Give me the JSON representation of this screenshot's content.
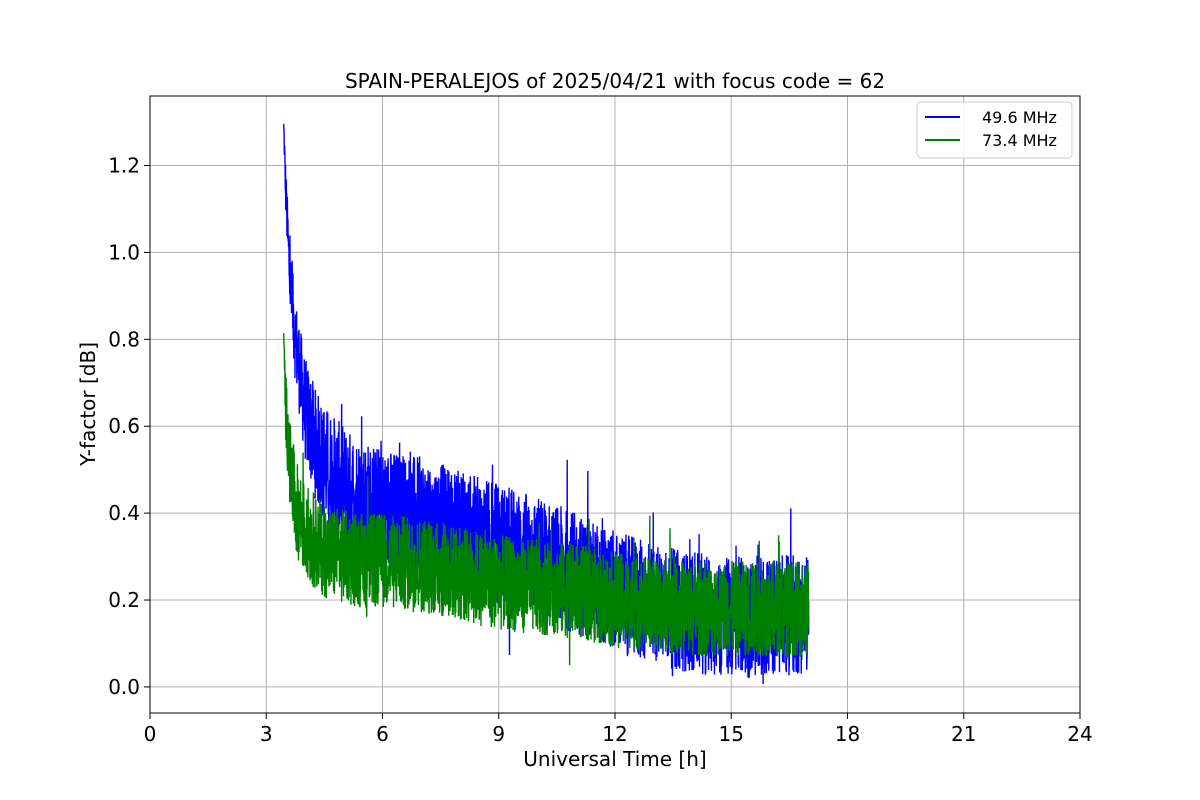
{
  "chart_data": {
    "type": "line",
    "title": "SPAIN-PERALEJOS of 2025/04/21 with focus code = 62",
    "xlabel": "Universal Time [h]",
    "ylabel": "Y-factor [dB]",
    "xlim": [
      0,
      24
    ],
    "ylim": [
      -0.06,
      1.36
    ],
    "xticks": [
      0,
      3,
      6,
      9,
      12,
      15,
      18,
      21,
      24
    ],
    "yticks": [
      0.0,
      0.2,
      0.4,
      0.6,
      0.8,
      1.0,
      1.2
    ],
    "xtick_labels": [
      "0",
      "3",
      "6",
      "9",
      "12",
      "15",
      "18",
      "21",
      "24"
    ],
    "ytick_labels": [
      "0.0",
      "0.2",
      "0.4",
      "0.6",
      "0.8",
      "1.0",
      "1.2"
    ],
    "grid": true,
    "legend_position": "top-right",
    "series": [
      {
        "name": "49.6 MHz",
        "color": "#0000ff",
        "x": [
          3.45,
          3.5,
          3.6,
          3.75,
          4.0,
          4.3,
          4.6,
          5.0,
          5.5,
          6.0,
          7.0,
          8.0,
          9.0,
          10.0,
          11.0,
          12.0,
          13.0,
          14.0,
          15.0,
          16.0,
          17.0
        ],
        "y": [
          1.29,
          1.15,
          0.95,
          0.8,
          0.64,
          0.55,
          0.5,
          0.46,
          0.43,
          0.41,
          0.39,
          0.36,
          0.33,
          0.3,
          0.26,
          0.22,
          0.19,
          0.17,
          0.16,
          0.16,
          0.17
        ],
        "spread": [
          0.02,
          0.06,
          0.08,
          0.1,
          0.12,
          0.13,
          0.14,
          0.14,
          0.14,
          0.14,
          0.14,
          0.14,
          0.14,
          0.14,
          0.14,
          0.14,
          0.14,
          0.14,
          0.14,
          0.14,
          0.14
        ]
      },
      {
        "name": "73.4 MHz",
        "color": "#008000",
        "x": [
          3.45,
          3.5,
          3.6,
          3.75,
          4.0,
          4.3,
          4.6,
          5.0,
          5.5,
          6.0,
          7.0,
          8.0,
          9.0,
          10.0,
          11.0,
          12.0,
          13.0,
          14.0,
          15.0,
          16.0,
          17.0
        ],
        "y": [
          0.8,
          0.65,
          0.52,
          0.42,
          0.36,
          0.33,
          0.31,
          0.3,
          0.29,
          0.29,
          0.28,
          0.26,
          0.24,
          0.23,
          0.22,
          0.2,
          0.19,
          0.18,
          0.18,
          0.18,
          0.18
        ],
        "spread": [
          0.02,
          0.08,
          0.1,
          0.11,
          0.11,
          0.11,
          0.11,
          0.11,
          0.11,
          0.11,
          0.11,
          0.11,
          0.11,
          0.11,
          0.11,
          0.11,
          0.11,
          0.11,
          0.11,
          0.11,
          0.11
        ]
      }
    ]
  }
}
